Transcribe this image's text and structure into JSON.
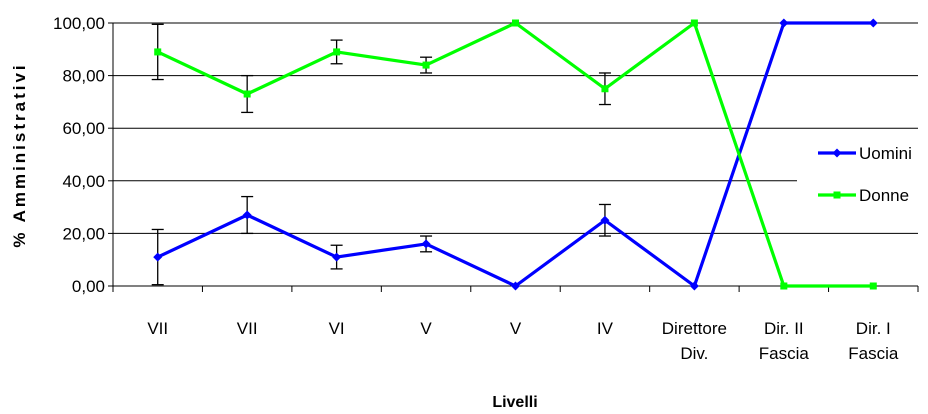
{
  "chart_data": {
    "type": "line",
    "categories": [
      [
        "VII"
      ],
      [
        "VII"
      ],
      [
        "VI"
      ],
      [
        "V"
      ],
      [
        "V"
      ],
      [
        "IV"
      ],
      [
        "Direttore",
        "Div."
      ],
      [
        "Dir. II",
        "Fascia"
      ],
      [
        "Dir. I",
        "Fascia"
      ]
    ],
    "series": [
      {
        "name": "Uomini",
        "color": "#0000ff",
        "marker": "diamond",
        "values": [
          11,
          27,
          11,
          16,
          0,
          25,
          0,
          100,
          100
        ],
        "errors": [
          10.5,
          7,
          4.5,
          3,
          null,
          6,
          null,
          null,
          null
        ]
      },
      {
        "name": "Donne",
        "color": "#00ff00",
        "marker": "square",
        "values": [
          89,
          73,
          89,
          84,
          100,
          75,
          100,
          0,
          0
        ],
        "errors": [
          10.5,
          7,
          4.5,
          3,
          null,
          6,
          null,
          null,
          null
        ]
      }
    ],
    "yticks": [
      "0,00",
      "20,00",
      "40,00",
      "60,00",
      "80,00",
      "100,00"
    ],
    "ylim": [
      0,
      100
    ],
    "ylabel": "% Amministrativi",
    "xlabel": "Livelli",
    "grid": true,
    "legend": "right"
  }
}
